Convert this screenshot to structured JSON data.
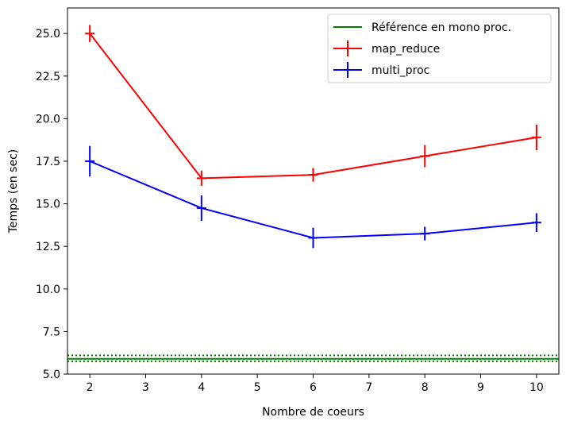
{
  "chart_data": {
    "type": "line",
    "title": "",
    "xlabel": "Nombre de coeurs",
    "ylabel": "Temps (en sec)",
    "xlim": [
      1.6,
      10.4
    ],
    "ylim": [
      5.0,
      26.5
    ],
    "xticks": [
      2,
      3,
      4,
      5,
      6,
      7,
      8,
      9,
      10
    ],
    "yticks": [
      5.0,
      7.5,
      10.0,
      12.5,
      15.0,
      17.5,
      20.0,
      22.5,
      25.0
    ],
    "xtick_labels": [
      "2",
      "3",
      "4",
      "5",
      "6",
      "7",
      "8",
      "9",
      "10"
    ],
    "ytick_labels": [
      "5.0",
      "7.5",
      "10.0",
      "12.5",
      "15.0",
      "17.5",
      "20.0",
      "22.5",
      "25.0"
    ],
    "grid": false,
    "legend_position": "top-right",
    "reference": {
      "name": "Référence en mono proc.",
      "color": "#008000",
      "value": 5.9,
      "lower": 5.75,
      "upper": 6.1
    },
    "series": [
      {
        "name": "map_reduce",
        "color": "#ff0000",
        "x": [
          2,
          4,
          6,
          8,
          10
        ],
        "y": [
          25.0,
          16.5,
          16.7,
          17.8,
          18.9
        ],
        "yerr": [
          0.5,
          0.45,
          0.4,
          0.65,
          0.75
        ]
      },
      {
        "name": "multi_proc",
        "color": "#0000ff",
        "x": [
          2,
          4,
          6,
          8,
          10
        ],
        "y": [
          17.5,
          14.75,
          13.0,
          13.25,
          13.9
        ],
        "yerr": [
          0.9,
          0.75,
          0.6,
          0.4,
          0.55
        ]
      }
    ]
  }
}
